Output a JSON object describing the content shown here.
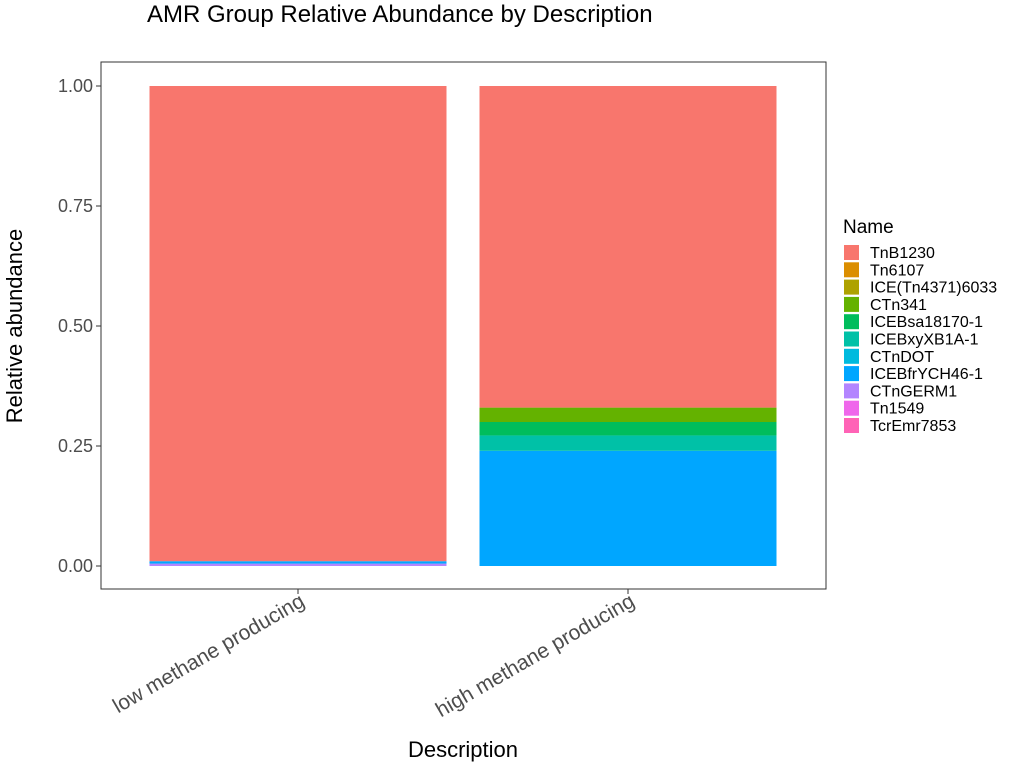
{
  "chart_data": {
    "type": "bar",
    "stacked": true,
    "title": "AMR Group Relative Abundance by Description",
    "xlabel": "Description",
    "ylabel": "Relative abundance",
    "ylim": [
      0,
      1.05
    ],
    "yticks": [
      "0.00",
      "0.25",
      "0.50",
      "0.75",
      "1.00"
    ],
    "ytick_values": [
      0,
      0.25,
      0.5,
      0.75,
      1.0
    ],
    "categories": [
      "low methane producing",
      "high methane producing"
    ],
    "legend": {
      "title": "Name",
      "placement": "right"
    },
    "series": [
      {
        "name": "TnB1230",
        "color": "#F8766D",
        "values": [
          0.99,
          0.67
        ]
      },
      {
        "name": "Tn6107",
        "color": "#DB8E00",
        "values": [
          0.0,
          0.0
        ]
      },
      {
        "name": "ICE(Tn4371)6033",
        "color": "#AEA200",
        "values": [
          0.0,
          0.0
        ]
      },
      {
        "name": "CTn341",
        "color": "#64B200",
        "values": [
          0.0,
          0.03
        ]
      },
      {
        "name": "ICEBsa18170-1",
        "color": "#00BD5C",
        "values": [
          0.0,
          0.028
        ]
      },
      {
        "name": "ICEBxyXB1A-1",
        "color": "#00C1A7",
        "values": [
          0.0,
          0.032
        ]
      },
      {
        "name": "CTnDOT",
        "color": "#00BADE",
        "values": [
          0.0,
          0.0
        ]
      },
      {
        "name": "ICEBfrYCH46-1",
        "color": "#00A6FF",
        "values": [
          0.005,
          0.24
        ]
      },
      {
        "name": "CTnGERM1",
        "color": "#B385FF",
        "values": [
          0.005,
          0.0
        ]
      },
      {
        "name": "Tn1549",
        "color": "#EF67EB",
        "values": [
          0.0,
          0.0
        ]
      },
      {
        "name": "TcrEmr7853",
        "color": "#FF63B6",
        "values": [
          0.0,
          0.0
        ]
      }
    ],
    "grid": false
  }
}
